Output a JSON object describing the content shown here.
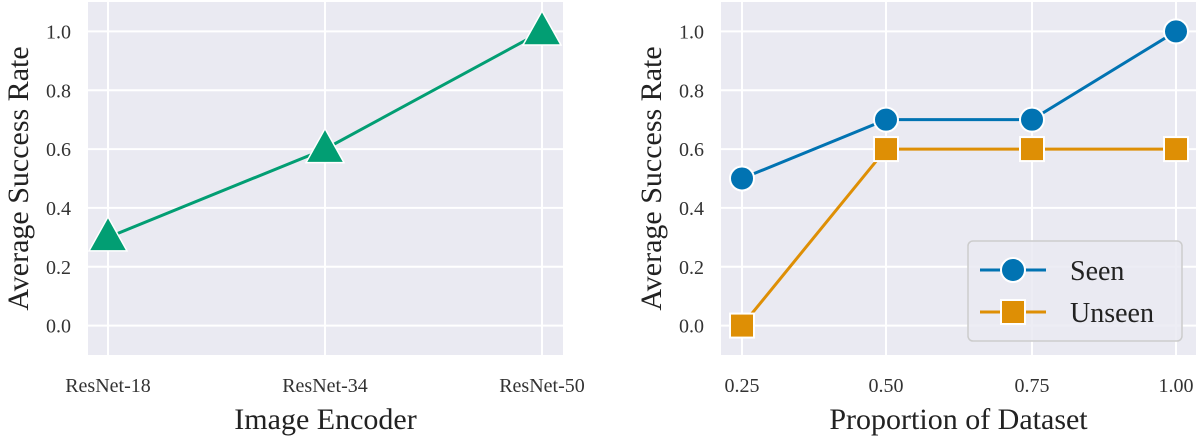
{
  "chart_data": [
    {
      "type": "line",
      "categories": [
        "ResNet-18",
        "ResNet-34",
        "ResNet-50"
      ],
      "series": [
        {
          "name": "",
          "values": [
            0.3,
            0.6,
            1.0
          ],
          "color": "#029e73",
          "marker": "triangle"
        }
      ],
      "title": "",
      "xlabel": "Image Encoder",
      "ylabel": "Average Success Rate",
      "ylim": [
        -0.1,
        1.1
      ],
      "yticks": [
        "0.0",
        "0.2",
        "0.4",
        "0.6",
        "0.8",
        "1.0"
      ],
      "grid": true,
      "background": "#eaeaf2"
    },
    {
      "type": "line",
      "categories": [
        "0.25",
        "0.50",
        "0.75",
        "1.00"
      ],
      "series": [
        {
          "name": "Seen",
          "values": [
            0.5,
            0.7,
            0.7,
            1.0
          ],
          "color": "#0173b2",
          "marker": "circle"
        },
        {
          "name": "Unseen",
          "values": [
            0.0,
            0.6,
            0.6,
            0.6
          ],
          "color": "#de8f05",
          "marker": "square"
        }
      ],
      "title": "",
      "xlabel": "Proportion of Dataset",
      "ylabel": "Average Success Rate",
      "ylim": [
        -0.1,
        1.1
      ],
      "yticks": [
        "0.0",
        "0.2",
        "0.4",
        "0.6",
        "0.8",
        "1.0"
      ],
      "grid": true,
      "legend": "lower-right",
      "background": "#eaeaf2"
    }
  ]
}
